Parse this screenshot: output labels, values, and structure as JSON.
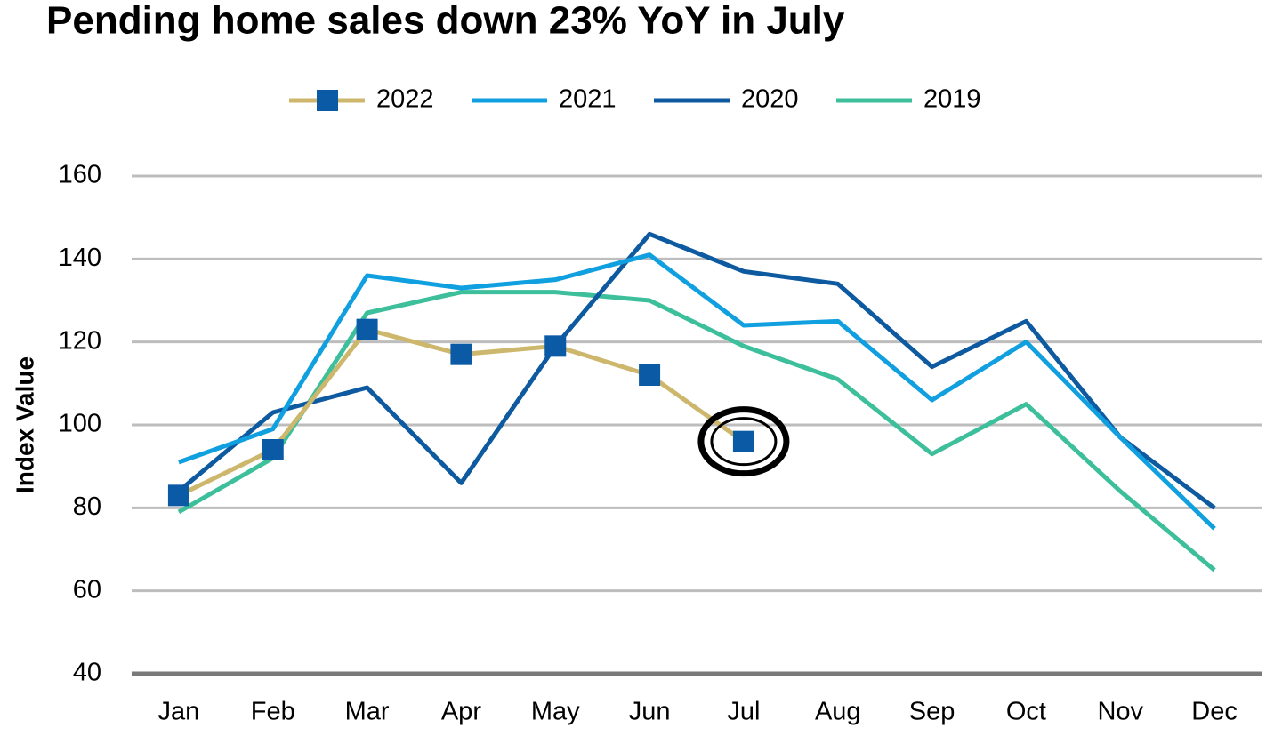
{
  "chart_data": {
    "type": "line",
    "title": "Pending home sales down 23% YoY in July",
    "y_label": "Index Value",
    "categories": [
      "Jan",
      "Feb",
      "Mar",
      "Apr",
      "May",
      "Jun",
      "Jul",
      "Aug",
      "Sep",
      "Oct",
      "Nov",
      "Dec"
    ],
    "series": [
      {
        "name": "2022",
        "color": "#cdb76d",
        "marker_color": "#0a5aa5",
        "values": [
          83,
          94,
          123,
          117,
          119,
          112,
          96,
          null,
          null,
          null,
          null,
          null
        ]
      },
      {
        "name": "2021",
        "color": "#109fdf",
        "values": [
          91,
          99,
          136,
          133,
          135,
          141,
          124,
          125,
          106,
          120,
          97,
          75
        ]
      },
      {
        "name": "2020",
        "color": "#0d5aa0",
        "values": [
          84,
          103,
          109,
          86,
          119,
          146,
          137,
          134,
          114,
          125,
          97,
          80
        ]
      },
      {
        "name": "2019",
        "color": "#3dbf9c",
        "values": [
          79,
          92,
          127,
          132,
          132,
          130,
          119,
          111,
          93,
          105,
          84,
          65
        ]
      }
    ],
    "ylim": [
      40,
      160
    ],
    "yticks": [
      40,
      60,
      80,
      100,
      120,
      140,
      160
    ],
    "grid": true
  }
}
